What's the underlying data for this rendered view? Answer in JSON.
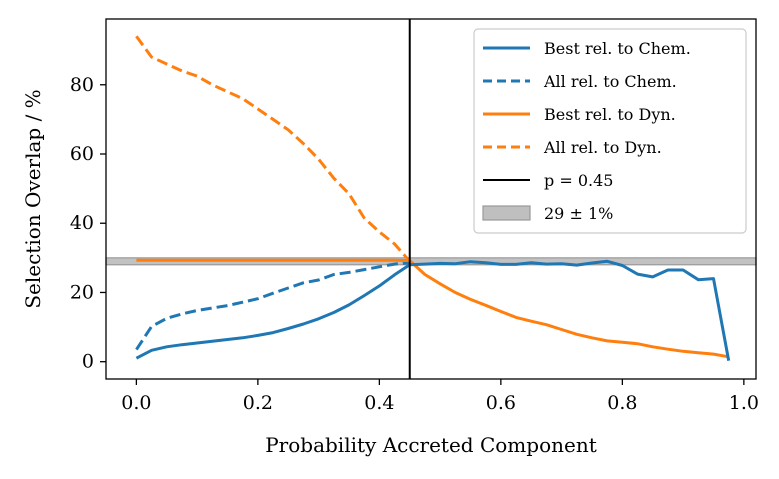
{
  "chart_data": {
    "type": "line",
    "xlabel": "Probability Accreted Component",
    "ylabel": "Selection Overlap / %",
    "xlim": [
      -0.05,
      1.02
    ],
    "ylim": [
      -5,
      99
    ],
    "xticks": [
      0.0,
      0.2,
      0.4,
      0.6,
      0.8,
      1.0
    ],
    "xtick_labels": [
      "0.0",
      "0.2",
      "0.4",
      "0.6",
      "0.8",
      "1.0"
    ],
    "yticks": [
      0,
      20,
      40,
      60,
      80
    ],
    "ytick_labels": [
      "0",
      "20",
      "40",
      "60",
      "80"
    ],
    "grid": false,
    "legend_position": "top-right",
    "series": [
      {
        "name": "Best rel. to Chem.",
        "color": "#1f77b4",
        "dash": "solid",
        "x": [
          0.0,
          0.025,
          0.05,
          0.075,
          0.1,
          0.125,
          0.15,
          0.175,
          0.2,
          0.225,
          0.25,
          0.275,
          0.3,
          0.325,
          0.35,
          0.375,
          0.4,
          0.425,
          0.45,
          0.475,
          0.5,
          0.525,
          0.55,
          0.575,
          0.6,
          0.625,
          0.65,
          0.675,
          0.7,
          0.725,
          0.75,
          0.775,
          0.8,
          0.825,
          0.85,
          0.875,
          0.9,
          0.925,
          0.95,
          0.975
        ],
        "y": [
          1,
          3.3,
          4.3,
          4.9,
          5.4,
          5.9,
          6.4,
          6.9,
          7.6,
          8.4,
          9.6,
          10.9,
          12.4,
          14.2,
          16.4,
          19.1,
          21.9,
          25.1,
          28.0,
          28.2,
          28.4,
          28.3,
          28.9,
          28.6,
          28.1,
          28.1,
          28.6,
          28.2,
          28.3,
          27.9,
          28.5,
          29.0,
          27.8,
          25.3,
          24.5,
          26.5,
          26.5,
          23.7,
          24.0,
          0.3
        ]
      },
      {
        "name": "All rel. to Chem.",
        "color": "#1f77b4",
        "dash": "dashed",
        "x": [
          0.0,
          0.025,
          0.05,
          0.075,
          0.1,
          0.125,
          0.15,
          0.175,
          0.2,
          0.225,
          0.25,
          0.275,
          0.3,
          0.325,
          0.35,
          0.375,
          0.4,
          0.425,
          0.45
        ],
        "y": [
          3.5,
          10.2,
          12.5,
          13.8,
          14.8,
          15.5,
          16.2,
          17.2,
          18.2,
          19.8,
          21.3,
          22.8,
          23.6,
          25.2,
          25.8,
          26.6,
          27.4,
          28.2,
          28.6
        ]
      },
      {
        "name": "Best rel. to Dyn.",
        "color": "#ff7f0e",
        "dash": "solid",
        "x": [
          0.0,
          0.025,
          0.05,
          0.075,
          0.1,
          0.125,
          0.15,
          0.175,
          0.2,
          0.225,
          0.25,
          0.275,
          0.3,
          0.325,
          0.35,
          0.375,
          0.4,
          0.425,
          0.45,
          0.475,
          0.5,
          0.525,
          0.55,
          0.575,
          0.6,
          0.625,
          0.65,
          0.675,
          0.7,
          0.725,
          0.75,
          0.775,
          0.8,
          0.825,
          0.85,
          0.875,
          0.9,
          0.925,
          0.95,
          0.975
        ],
        "y": [
          29.3,
          29.3,
          29.3,
          29.3,
          29.3,
          29.3,
          29.3,
          29.3,
          29.3,
          29.3,
          29.3,
          29.3,
          29.3,
          29.3,
          29.3,
          29.3,
          29.3,
          29.3,
          29.2,
          25.2,
          22.5,
          20.0,
          18.0,
          16.3,
          14.5,
          12.8,
          11.7,
          10.7,
          9.3,
          7.9,
          6.9,
          6.0,
          5.6,
          5.2,
          4.3,
          3.6,
          3.0,
          2.6,
          2.2,
          1.4
        ]
      },
      {
        "name": "All rel. to Dyn.",
        "color": "#ff7f0e",
        "dash": "dashed",
        "x": [
          0.0,
          0.025,
          0.05,
          0.075,
          0.1,
          0.125,
          0.15,
          0.175,
          0.2,
          0.225,
          0.25,
          0.275,
          0.3,
          0.325,
          0.35,
          0.375,
          0.4,
          0.425,
          0.45
        ],
        "y": [
          94.0,
          88.0,
          86.0,
          84.0,
          82.5,
          80.0,
          78.0,
          76.0,
          73.0,
          70.0,
          67.0,
          63.0,
          58.5,
          53.0,
          48.5,
          41.5,
          37.5,
          34.0,
          29.0
        ]
      }
    ],
    "vline": {
      "name": "p = 0.45",
      "x": 0.45,
      "color": "#000000"
    },
    "hband": {
      "name": "29 ± 1%",
      "center": 29,
      "halfwidth": 1,
      "color": "#bfbfbf",
      "edge": "#999999"
    }
  }
}
